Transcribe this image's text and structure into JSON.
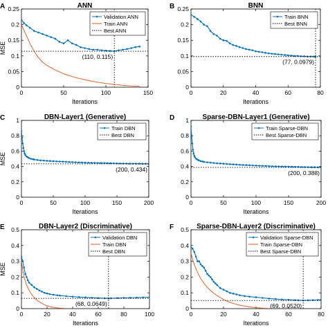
{
  "chart_data": [
    {
      "panel_letter": "A",
      "type": "line",
      "title": "ANN",
      "xlabel": "Iterations",
      "ylabel": "MSE",
      "xlim": [
        0,
        150
      ],
      "ylim": [
        0,
        0.25
      ],
      "xticks": [
        0,
        50,
        100,
        150
      ],
      "yticks": [
        0,
        0.05,
        0.1,
        0.15,
        0.2,
        0.25
      ],
      "ytick_labels": [
        "0",
        "0.05",
        "0.1",
        "0.15",
        "0.2",
        "0.25"
      ],
      "legend_position": "top-right",
      "grid": false,
      "series": [
        {
          "name": "Validation ANN",
          "color": "#0072BD",
          "markers": true,
          "x": [
            0,
            3,
            6,
            10,
            15,
            20,
            25,
            30,
            35,
            40,
            45,
            50,
            55,
            60,
            65,
            70,
            75,
            80,
            85,
            90,
            95,
            100,
            105,
            110,
            115,
            120,
            125,
            130,
            135,
            140
          ],
          "y": [
            0.215,
            0.205,
            0.198,
            0.19,
            0.18,
            0.175,
            0.17,
            0.165,
            0.16,
            0.155,
            0.145,
            0.14,
            0.15,
            0.14,
            0.135,
            0.128,
            0.125,
            0.122,
            0.12,
            0.12,
            0.118,
            0.117,
            0.116,
            0.115,
            0.118,
            0.12,
            0.122,
            0.125,
            0.128,
            0.13
          ]
        },
        {
          "name": "Train ANN",
          "color": "#D95319",
          "markers": false,
          "x": [
            0,
            5,
            10,
            15,
            20,
            25,
            30,
            40,
            50,
            60,
            70,
            80,
            90,
            100,
            110,
            120,
            130,
            140
          ],
          "y": [
            0.2,
            0.17,
            0.14,
            0.115,
            0.095,
            0.08,
            0.07,
            0.055,
            0.043,
            0.034,
            0.027,
            0.021,
            0.016,
            0.012,
            0.009,
            0.006,
            0.004,
            0.003
          ]
        },
        {
          "name": "Best ANN",
          "color": "#000000",
          "style": "dotted",
          "value": 0.115,
          "best_x": 110
        }
      ],
      "annotation": "(110, 0.115)"
    },
    {
      "panel_letter": "B",
      "type": "line",
      "title": "BNN",
      "xlabel": "Iterations",
      "ylabel": "",
      "xlim": [
        0,
        80
      ],
      "ylim": [
        0,
        0.25
      ],
      "xticks": [
        0,
        20,
        40,
        60,
        80
      ],
      "yticks": [
        0,
        0.05,
        0.1,
        0.15,
        0.2,
        0.25
      ],
      "ytick_labels": [
        "0",
        "0.05",
        "0.1",
        "0.15",
        "0.2",
        "0.25"
      ],
      "legend_position": "top-right",
      "grid": false,
      "series": [
        {
          "name": "Train BNN",
          "color": "#0072BD",
          "markers": true,
          "x": [
            0,
            2,
            4,
            6,
            8,
            10,
            12,
            14,
            16,
            18,
            20,
            22,
            24,
            26,
            28,
            30,
            32,
            34,
            36,
            38,
            40,
            42,
            44,
            46,
            48,
            50,
            52,
            54,
            56,
            58,
            60,
            62,
            64,
            66,
            68,
            70,
            72,
            74,
            76,
            77
          ],
          "y": [
            0.232,
            0.225,
            0.218,
            0.21,
            0.2,
            0.195,
            0.18,
            0.17,
            0.165,
            0.155,
            0.15,
            0.148,
            0.14,
            0.135,
            0.132,
            0.128,
            0.125,
            0.122,
            0.12,
            0.118,
            0.115,
            0.113,
            0.112,
            0.11,
            0.108,
            0.107,
            0.106,
            0.105,
            0.104,
            0.103,
            0.102,
            0.101,
            0.1,
            0.1,
            0.099,
            0.099,
            0.098,
            0.098,
            0.098,
            0.0979
          ]
        },
        {
          "name": "Best BNN",
          "color": "#000000",
          "style": "dotted",
          "value": 0.0979,
          "best_x": 77
        }
      ],
      "annotation": "(77, 0.0979)"
    },
    {
      "panel_letter": "C",
      "type": "line",
      "title": "DBN-Layer1 (Generative)",
      "xlabel": "Iterations",
      "ylabel": "MSE",
      "xlim": [
        0,
        200
      ],
      "ylim": [
        0,
        1
      ],
      "xticks": [
        0,
        50,
        100,
        150,
        200
      ],
      "yticks": [
        0,
        0.2,
        0.4,
        0.6,
        0.8,
        1
      ],
      "ytick_labels": [
        "0",
        "0.2",
        "0.4",
        "0.6",
        "0.8",
        "1"
      ],
      "legend_position": "top-right",
      "grid": false,
      "series": [
        {
          "name": "Train DBN",
          "color": "#0072BD",
          "markers": true,
          "x": [
            0,
            1,
            2,
            3,
            4,
            5,
            6,
            8,
            10,
            12,
            15,
            18,
            20,
            25,
            30,
            35,
            40,
            45,
            50,
            55,
            60,
            65,
            70,
            75,
            80,
            85,
            90,
            95,
            100,
            105,
            110,
            115,
            120,
            125,
            130,
            135,
            140,
            145,
            150,
            155,
            160,
            165,
            170,
            175,
            180,
            185,
            190,
            195,
            200
          ],
          "y": [
            0.86,
            0.78,
            0.7,
            0.64,
            0.6,
            0.57,
            0.55,
            0.53,
            0.52,
            0.51,
            0.5,
            0.495,
            0.49,
            0.485,
            0.48,
            0.477,
            0.474,
            0.471,
            0.469,
            0.467,
            0.465,
            0.463,
            0.461,
            0.459,
            0.457,
            0.455,
            0.453,
            0.452,
            0.45,
            0.449,
            0.448,
            0.447,
            0.446,
            0.445,
            0.444,
            0.443,
            0.442,
            0.441,
            0.44,
            0.439,
            0.438,
            0.438,
            0.437,
            0.437,
            0.436,
            0.436,
            0.435,
            0.435,
            0.434
          ]
        },
        {
          "name": "Best DBN",
          "color": "#000000",
          "style": "dotted",
          "value": 0.434,
          "best_x": 200
        }
      ],
      "annotation": "(200, 0.434)"
    },
    {
      "panel_letter": "D",
      "type": "line",
      "title": "Sparse-DBN-Layer1 (Generative)",
      "xlabel": "Iterations",
      "ylabel": "",
      "xlim": [
        0,
        200
      ],
      "ylim": [
        0,
        1
      ],
      "xticks": [
        0,
        50,
        100,
        150,
        200
      ],
      "yticks": [
        0,
        0.2,
        0.4,
        0.6,
        0.8,
        1
      ],
      "ytick_labels": [
        "0",
        "0.2",
        "0.4",
        "0.6",
        "0.8",
        "1"
      ],
      "legend_position": "top-right",
      "grid": false,
      "series": [
        {
          "name": "Train Sparse-DBN",
          "color": "#0072BD",
          "markers": true,
          "x": [
            0,
            1,
            2,
            3,
            4,
            5,
            6,
            8,
            10,
            12,
            15,
            18,
            20,
            25,
            30,
            35,
            40,
            45,
            50,
            55,
            60,
            65,
            70,
            75,
            80,
            85,
            90,
            95,
            100,
            105,
            110,
            115,
            120,
            125,
            130,
            135,
            140,
            145,
            150,
            155,
            160,
            165,
            170,
            175,
            180,
            185,
            190,
            195,
            200
          ],
          "y": [
            0.92,
            0.8,
            0.7,
            0.62,
            0.57,
            0.54,
            0.52,
            0.5,
            0.49,
            0.48,
            0.47,
            0.465,
            0.46,
            0.455,
            0.45,
            0.446,
            0.442,
            0.439,
            0.436,
            0.433,
            0.43,
            0.427,
            0.425,
            0.422,
            0.42,
            0.418,
            0.416,
            0.414,
            0.412,
            0.41,
            0.408,
            0.407,
            0.405,
            0.403,
            0.402,
            0.401,
            0.4,
            0.399,
            0.398,
            0.397,
            0.396,
            0.395,
            0.394,
            0.393,
            0.392,
            0.391,
            0.39,
            0.389,
            0.388
          ]
        },
        {
          "name": "Best Sparse-DBN",
          "color": "#000000",
          "style": "dotted",
          "value": 0.388,
          "best_x": 200
        }
      ],
      "annotation": "(200, 0.388)"
    },
    {
      "panel_letter": "E",
      "type": "line",
      "title": "DBN-Layer2 (Discriminative)",
      "xlabel": "Iterations",
      "ylabel": "MSE",
      "xlim": [
        0,
        100
      ],
      "ylim": [
        0,
        0.5
      ],
      "xticks": [
        0,
        20,
        40,
        60,
        80,
        100
      ],
      "yticks": [
        0,
        0.1,
        0.2,
        0.3,
        0.4,
        0.5
      ],
      "ytick_labels": [
        "0",
        "0.1",
        "0.2",
        "0.3",
        "0.4",
        "0.5"
      ],
      "legend_position": "top-right",
      "grid": false,
      "series": [
        {
          "name": "Validation DBN",
          "color": "#0072BD",
          "markers": true,
          "x": [
            0,
            1,
            2,
            3,
            4,
            5,
            6,
            8,
            10,
            12,
            14,
            16,
            18,
            20,
            22,
            25,
            28,
            30,
            35,
            40,
            45,
            50,
            55,
            60,
            65,
            68,
            70,
            75,
            80,
            85,
            90,
            95,
            100
          ],
          "y": [
            0.33,
            0.3,
            0.26,
            0.22,
            0.2,
            0.18,
            0.165,
            0.15,
            0.135,
            0.125,
            0.115,
            0.108,
            0.1,
            0.096,
            0.092,
            0.088,
            0.085,
            0.083,
            0.079,
            0.076,
            0.073,
            0.071,
            0.069,
            0.067,
            0.066,
            0.0649,
            0.066,
            0.067,
            0.068,
            0.069,
            0.07,
            0.071,
            0.072
          ]
        },
        {
          "name": "Train DBN",
          "color": "#D95319",
          "markers": false,
          "x": [
            0,
            2,
            4,
            6,
            8,
            10,
            12,
            14,
            16,
            18,
            20,
            22,
            25,
            28,
            30,
            32,
            35
          ],
          "y": [
            0.3,
            0.2,
            0.15,
            0.115,
            0.09,
            0.07,
            0.055,
            0.043,
            0.033,
            0.025,
            0.018,
            0.013,
            0.008,
            0.005,
            0.003,
            0.002,
            0.001
          ]
        },
        {
          "name": "Best DBN",
          "color": "#000000",
          "style": "dotted",
          "value": 0.0649,
          "best_x": 68
        }
      ],
      "annotation": "(68, 0.0649)"
    },
    {
      "panel_letter": "F",
      "type": "line",
      "title": "Sparse-DBN-Layer2 (Discriminative)",
      "xlabel": "Iterations",
      "ylabel": "",
      "xlim": [
        0,
        80
      ],
      "ylim": [
        0,
        0.5
      ],
      "xticks": [
        0,
        20,
        40,
        60,
        80
      ],
      "yticks": [
        0,
        0.1,
        0.2,
        0.3,
        0.4,
        0.5
      ],
      "ytick_labels": [
        "0",
        "0.1",
        "0.2",
        "0.3",
        "0.4",
        "0.5"
      ],
      "legend_position": "top-right",
      "grid": false,
      "series": [
        {
          "name": "Validation Sparse-DBN",
          "color": "#0072BD",
          "markers": true,
          "x": [
            0,
            1,
            2,
            3,
            4,
            5,
            6,
            7,
            8,
            9,
            10,
            11,
            12,
            13,
            14,
            15,
            16,
            18,
            20,
            22,
            24,
            26,
            28,
            30,
            33,
            36,
            40,
            44,
            48,
            52,
            56,
            60,
            64,
            66,
            69,
            72,
            75,
            78,
            80
          ],
          "y": [
            0.39,
            0.38,
            0.36,
            0.33,
            0.3,
            0.3,
            0.28,
            0.27,
            0.26,
            0.24,
            0.22,
            0.21,
            0.2,
            0.185,
            0.17,
            0.16,
            0.15,
            0.13,
            0.12,
            0.11,
            0.1,
            0.095,
            0.09,
            0.085,
            0.08,
            0.076,
            0.072,
            0.068,
            0.064,
            0.061,
            0.058,
            0.056,
            0.054,
            0.053,
            0.052,
            0.053,
            0.054,
            0.055,
            0.056
          ]
        },
        {
          "name": "Train Sparse-DBN",
          "color": "#D95319",
          "markers": false,
          "x": [
            0,
            2,
            4,
            6,
            8,
            10,
            12,
            14,
            16,
            18,
            20,
            22,
            24,
            26,
            28,
            30,
            33,
            36,
            40,
            44,
            48
          ],
          "y": [
            0.35,
            0.28,
            0.23,
            0.19,
            0.16,
            0.135,
            0.115,
            0.098,
            0.083,
            0.07,
            0.058,
            0.048,
            0.04,
            0.033,
            0.027,
            0.022,
            0.016,
            0.011,
            0.006,
            0.003,
            0.001
          ]
        },
        {
          "name": "Best Sparse-DBN",
          "color": "#000000",
          "style": "dotted",
          "value": 0.052,
          "best_x": 69
        }
      ],
      "annotation": "(69, 0.0520)"
    }
  ]
}
